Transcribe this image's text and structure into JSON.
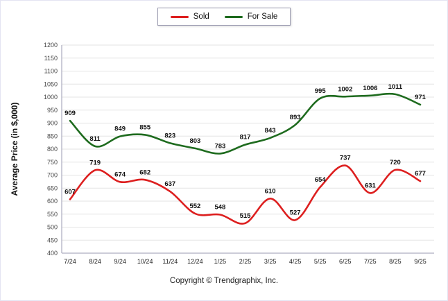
{
  "chart_data": {
    "type": "line",
    "title": "",
    "xlabel": "",
    "ylabel": "Average Price (in $,000)",
    "ylim": [
      400,
      1200
    ],
    "ytick_step": 50,
    "grid": true,
    "legend_position": "top",
    "categories": [
      "7/24",
      "8/24",
      "9/24",
      "10/24",
      "11/24",
      "12/24",
      "1/25",
      "2/25",
      "3/25",
      "4/25",
      "5/25",
      "6/25",
      "7/25",
      "8/25",
      "9/25"
    ],
    "series": [
      {
        "name": "Sold",
        "color": "#dd1f1f",
        "values": [
          607,
          719,
          674,
          682,
          637,
          552,
          548,
          515,
          610,
          527,
          654,
          737,
          631,
          720,
          677
        ]
      },
      {
        "name": "For Sale",
        "color": "#1e6b1e",
        "values": [
          909,
          811,
          849,
          855,
          823,
          803,
          783,
          817,
          843,
          893,
          995,
          1002,
          1006,
          1011,
          971
        ]
      }
    ]
  },
  "footer": {
    "copyright": "Copyright © Trendgraphix, Inc."
  }
}
